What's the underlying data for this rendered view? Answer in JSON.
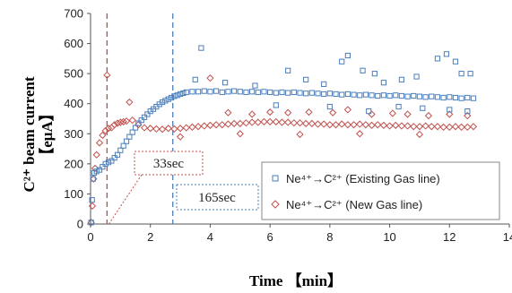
{
  "chart_data": {
    "type": "scatter",
    "xlabel": "Time 【min】",
    "ylabel_line1": "C²⁺ beam current",
    "ylabel_line2": "【eμA】",
    "xlim": [
      0,
      14
    ],
    "ylim": [
      0,
      700
    ],
    "x_ticks": [
      "0",
      "2",
      "4",
      "6",
      "8",
      "10",
      "12",
      "14"
    ],
    "y_ticks": [
      "0",
      "100",
      "200",
      "300",
      "400",
      "500",
      "600",
      "700"
    ],
    "grid": false,
    "legend_position": "bottom-right",
    "series": [
      {
        "name": "Ne⁴⁺→C²⁺ (Existing Gas line)",
        "marker": "square",
        "color": "#4a7ebb",
        "points": [
          [
            0.02,
            5
          ],
          [
            0.05,
            80
          ],
          [
            0.08,
            150
          ],
          [
            0.12,
            170
          ],
          [
            0.2,
            175
          ],
          [
            0.3,
            180
          ],
          [
            0.4,
            190
          ],
          [
            0.5,
            200
          ],
          [
            0.6,
            205
          ],
          [
            0.7,
            210
          ],
          [
            0.8,
            220
          ],
          [
            0.9,
            230
          ],
          [
            1.0,
            245
          ],
          [
            1.1,
            260
          ],
          [
            1.2,
            275
          ],
          [
            1.3,
            290
          ],
          [
            1.4,
            305
          ],
          [
            1.5,
            320
          ],
          [
            1.6,
            335
          ],
          [
            1.7,
            345
          ],
          [
            1.8,
            355
          ],
          [
            1.9,
            365
          ],
          [
            2.0,
            375
          ],
          [
            2.1,
            382
          ],
          [
            2.2,
            390
          ],
          [
            2.3,
            398
          ],
          [
            2.4,
            405
          ],
          [
            2.5,
            410
          ],
          [
            2.6,
            415
          ],
          [
            2.7,
            420
          ],
          [
            2.8,
            425
          ],
          [
            2.9,
            428
          ],
          [
            3.0,
            432
          ],
          [
            3.1,
            435
          ],
          [
            3.2,
            438
          ],
          [
            3.4,
            440
          ],
          [
            3.6,
            440
          ],
          [
            3.8,
            442
          ],
          [
            4.0,
            440
          ],
          [
            4.2,
            442
          ],
          [
            4.4,
            438
          ],
          [
            4.6,
            440
          ],
          [
            4.8,
            442
          ],
          [
            5.0,
            440
          ],
          [
            5.2,
            438
          ],
          [
            5.4,
            440
          ],
          [
            5.6,
            438
          ],
          [
            5.8,
            440
          ],
          [
            6.0,
            438
          ],
          [
            6.2,
            436
          ],
          [
            6.4,
            438
          ],
          [
            6.6,
            436
          ],
          [
            6.8,
            438
          ],
          [
            7.0,
            436
          ],
          [
            7.2,
            434
          ],
          [
            7.4,
            436
          ],
          [
            7.6,
            434
          ],
          [
            7.8,
            432
          ],
          [
            8.0,
            434
          ],
          [
            8.2,
            432
          ],
          [
            8.4,
            430
          ],
          [
            8.6,
            432
          ],
          [
            8.8,
            430
          ],
          [
            9.0,
            428
          ],
          [
            9.2,
            430
          ],
          [
            9.4,
            428
          ],
          [
            9.6,
            426
          ],
          [
            9.8,
            428
          ],
          [
            10.0,
            426
          ],
          [
            10.2,
            428
          ],
          [
            10.4,
            426
          ],
          [
            10.6,
            424
          ],
          [
            10.8,
            426
          ],
          [
            11.0,
            424
          ],
          [
            11.2,
            422
          ],
          [
            11.4,
            424
          ],
          [
            11.6,
            422
          ],
          [
            11.8,
            420
          ],
          [
            12.0,
            422
          ],
          [
            12.2,
            420
          ],
          [
            12.4,
            418
          ],
          [
            12.6,
            420
          ],
          [
            12.8,
            418
          ],
          [
            3.5,
            480
          ],
          [
            3.7,
            585
          ],
          [
            4.5,
            470
          ],
          [
            5.5,
            460
          ],
          [
            6.6,
            510
          ],
          [
            7.2,
            480
          ],
          [
            7.8,
            465
          ],
          [
            8.4,
            540
          ],
          [
            8.6,
            560
          ],
          [
            9.1,
            510
          ],
          [
            9.5,
            500
          ],
          [
            9.8,
            470
          ],
          [
            10.4,
            480
          ],
          [
            10.9,
            490
          ],
          [
            11.6,
            550
          ],
          [
            11.9,
            565
          ],
          [
            12.2,
            540
          ],
          [
            12.4,
            500
          ],
          [
            12.7,
            500
          ],
          [
            6.2,
            395
          ],
          [
            8.0,
            390
          ],
          [
            9.3,
            375
          ],
          [
            10.3,
            390
          ],
          [
            11.1,
            385
          ],
          [
            12.0,
            380
          ],
          [
            12.6,
            375
          ]
        ]
      },
      {
        "name": "Ne⁴⁺→C²⁺ (New Gas line)",
        "marker": "diamond",
        "color": "#c0504d",
        "points": [
          [
            0.02,
            5
          ],
          [
            0.06,
            60
          ],
          [
            0.1,
            150
          ],
          [
            0.15,
            185
          ],
          [
            0.2,
            230
          ],
          [
            0.3,
            270
          ],
          [
            0.4,
            295
          ],
          [
            0.5,
            310
          ],
          [
            0.6,
            318
          ],
          [
            0.7,
            320
          ],
          [
            0.8,
            330
          ],
          [
            0.9,
            335
          ],
          [
            1.0,
            338
          ],
          [
            1.1,
            340
          ],
          [
            1.2,
            342
          ],
          [
            1.4,
            345
          ],
          [
            1.6,
            330
          ],
          [
            1.8,
            320
          ],
          [
            2.0,
            318
          ],
          [
            2.2,
            316
          ],
          [
            2.4,
            315
          ],
          [
            2.6,
            318
          ],
          [
            2.8,
            316
          ],
          [
            3.0,
            318
          ],
          [
            3.2,
            320
          ],
          [
            3.4,
            322
          ],
          [
            3.6,
            324
          ],
          [
            3.8,
            326
          ],
          [
            4.0,
            328
          ],
          [
            4.2,
            330
          ],
          [
            4.4,
            330
          ],
          [
            4.6,
            332
          ],
          [
            4.8,
            334
          ],
          [
            5.0,
            334
          ],
          [
            5.2,
            336
          ],
          [
            5.4,
            338
          ],
          [
            5.6,
            338
          ],
          [
            5.8,
            340
          ],
          [
            6.0,
            340
          ],
          [
            6.2,
            340
          ],
          [
            6.4,
            338
          ],
          [
            6.6,
            338
          ],
          [
            6.8,
            336
          ],
          [
            7.0,
            336
          ],
          [
            7.2,
            334
          ],
          [
            7.4,
            334
          ],
          [
            7.6,
            332
          ],
          [
            7.8,
            332
          ],
          [
            8.0,
            330
          ],
          [
            8.2,
            330
          ],
          [
            8.4,
            332
          ],
          [
            8.6,
            330
          ],
          [
            8.8,
            330
          ],
          [
            9.0,
            332
          ],
          [
            9.2,
            330
          ],
          [
            9.4,
            328
          ],
          [
            9.6,
            330
          ],
          [
            9.8,
            328
          ],
          [
            10.0,
            326
          ],
          [
            10.2,
            328
          ],
          [
            10.4,
            326
          ],
          [
            10.6,
            326
          ],
          [
            10.8,
            324
          ],
          [
            11.0,
            324
          ],
          [
            11.2,
            326
          ],
          [
            11.4,
            324
          ],
          [
            11.6,
            324
          ],
          [
            11.8,
            322
          ],
          [
            12.0,
            322
          ],
          [
            12.2,
            324
          ],
          [
            12.4,
            322
          ],
          [
            12.6,
            322
          ],
          [
            12.8,
            324
          ],
          [
            0.55,
            495
          ],
          [
            1.3,
            405
          ],
          [
            4.0,
            485
          ],
          [
            4.6,
            370
          ],
          [
            5.4,
            365
          ],
          [
            6.0,
            372
          ],
          [
            6.6,
            370
          ],
          [
            7.3,
            372
          ],
          [
            8.1,
            370
          ],
          [
            8.6,
            380
          ],
          [
            9.4,
            365
          ],
          [
            10.1,
            368
          ],
          [
            10.6,
            365
          ],
          [
            11.3,
            360
          ],
          [
            12.0,
            365
          ],
          [
            12.6,
            360
          ],
          [
            3.0,
            290
          ],
          [
            5.0,
            300
          ],
          [
            7.0,
            298
          ],
          [
            9.0,
            300
          ],
          [
            11.0,
            298
          ]
        ]
      }
    ],
    "markers": [
      {
        "x": 0.55,
        "color": "#c0504d",
        "label": "33sec"
      },
      {
        "x": 2.75,
        "color": "#4a7ebb",
        "label": "165sec"
      }
    ]
  }
}
